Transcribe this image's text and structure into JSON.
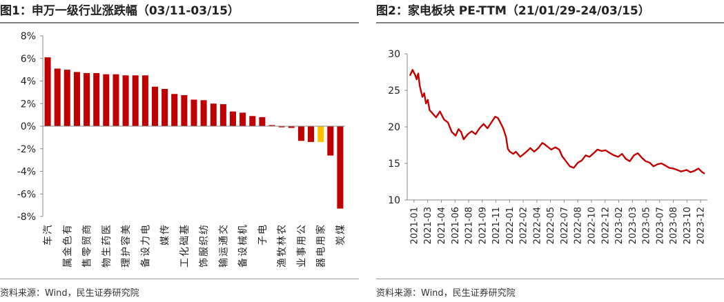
{
  "figures": [
    {
      "title": "图1：申万一级行业涨跌幅（03/11-03/15）",
      "source": "资料来源：Wind，民生证券研究院"
    },
    {
      "title": "图2：家电板块 PE-TTM（21/01/29-24/03/15）",
      "source": "资料来源：Wind，民生证券研究院"
    }
  ],
  "chart_data": [
    {
      "type": "bar",
      "title": "图1：申万一级行业涨跌幅（03/11-03/15）",
      "categories": [
        "汽车",
        "有色金属",
        "商贸零售",
        "医药生物",
        "美容护理",
        "电力设备",
        "传媒",
        "基础化工",
        "纺织服饰",
        "交通运输",
        "机械设备",
        "电子",
        "农林牧渔",
        "公用事业",
        "家用电器",
        "煤炭"
      ],
      "all_bars": [
        6.1,
        5.1,
        5.0,
        4.8,
        4.7,
        4.7,
        4.6,
        4.6,
        4.5,
        4.5,
        4.5,
        3.5,
        3.3,
        2.85,
        2.75,
        2.35,
        2.3,
        2.0,
        1.95,
        1.3,
        1.2,
        0.9,
        0.8,
        0.1,
        -0.1,
        -0.15,
        -1.3,
        -1.4,
        -1.4,
        -2.6,
        -7.3
      ],
      "highlight_index": 28,
      "ylim": [
        -8,
        8
      ],
      "yticks": [
        "-8%",
        "-6%",
        "-4%",
        "-2%",
        "0%",
        "2%",
        "4%",
        "6%",
        "8%"
      ],
      "colors": {
        "bar": "#c00000",
        "highlight": "#ffc000"
      }
    },
    {
      "type": "line",
      "title": "图2：家电板块 PE-TTM（21/01/29-24/03/15）",
      "x_start": "2021-01-29",
      "x_end": "2024-03-15",
      "xticks": [
        "2021-01",
        "2021-03",
        "2021-04",
        "2021-06",
        "2021-08",
        "2021-09",
        "2021-11",
        "2022-01",
        "2022-02",
        "2022-04",
        "2022-05",
        "2022-07",
        "2022-08",
        "2022-10",
        "2022-12",
        "2023-02",
        "2023-03",
        "2023-05",
        "2023-07",
        "2023-08",
        "2023-10",
        "2023-12"
      ],
      "ylim": [
        10,
        30
      ],
      "yticks": [
        "10",
        "15",
        "20",
        "25",
        "30"
      ],
      "series": [
        {
          "points": [
            [
              "2021-01-29",
              27.0
            ],
            [
              "2021-02-08",
              27.8
            ],
            [
              "2021-02-18",
              27.1
            ],
            [
              "2021-02-24",
              26.5
            ],
            [
              "2021-03-02",
              27.3
            ],
            [
              "2021-03-08",
              25.6
            ],
            [
              "2021-03-18",
              24.1
            ],
            [
              "2021-03-25",
              24.6
            ],
            [
              "2021-04-01",
              23.2
            ],
            [
              "2021-04-08",
              23.7
            ],
            [
              "2021-04-15",
              22.3
            ],
            [
              "2021-04-25",
              21.9
            ],
            [
              "2021-05-10",
              21.3
            ],
            [
              "2021-05-25",
              22.1
            ],
            [
              "2021-06-10",
              21.0
            ],
            [
              "2021-06-25",
              20.6
            ],
            [
              "2021-07-10",
              19.3
            ],
            [
              "2021-07-25",
              18.8
            ],
            [
              "2021-08-05",
              19.7
            ],
            [
              "2021-08-15",
              19.3
            ],
            [
              "2021-08-25",
              18.3
            ],
            [
              "2021-09-10",
              19.0
            ],
            [
              "2021-09-25",
              19.4
            ],
            [
              "2021-10-10",
              19.0
            ],
            [
              "2021-10-25",
              19.8
            ],
            [
              "2021-11-10",
              20.4
            ],
            [
              "2021-11-25",
              19.8
            ],
            [
              "2021-12-10",
              20.6
            ],
            [
              "2021-12-25",
              21.4
            ],
            [
              "2022-01-05",
              21.2
            ],
            [
              "2022-01-15",
              20.5
            ],
            [
              "2022-01-25",
              19.8
            ],
            [
              "2022-02-05",
              18.6
            ],
            [
              "2022-02-12",
              17.0
            ],
            [
              "2022-02-20",
              16.6
            ],
            [
              "2022-03-05",
              16.3
            ],
            [
              "2022-03-15",
              16.6
            ],
            [
              "2022-04-01",
              15.9
            ],
            [
              "2022-04-15",
              16.3
            ],
            [
              "2022-04-28",
              16.7
            ],
            [
              "2022-05-10",
              17.1
            ],
            [
              "2022-05-25",
              16.6
            ],
            [
              "2022-06-10",
              17.1
            ],
            [
              "2022-06-25",
              17.8
            ],
            [
              "2022-07-05",
              17.6
            ],
            [
              "2022-07-15",
              17.3
            ],
            [
              "2022-07-30",
              16.9
            ],
            [
              "2022-08-15",
              17.2
            ],
            [
              "2022-08-30",
              16.9
            ],
            [
              "2022-09-10",
              16.0
            ],
            [
              "2022-09-25",
              15.3
            ],
            [
              "2022-10-10",
              14.6
            ],
            [
              "2022-10-25",
              14.4
            ],
            [
              "2022-11-10",
              15.1
            ],
            [
              "2022-11-25",
              15.4
            ],
            [
              "2022-12-10",
              16.1
            ],
            [
              "2022-12-25",
              15.9
            ],
            [
              "2023-01-10",
              16.4
            ],
            [
              "2023-01-25",
              16.9
            ],
            [
              "2023-02-10",
              16.7
            ],
            [
              "2023-02-25",
              16.8
            ],
            [
              "2023-03-15",
              16.4
            ],
            [
              "2023-03-30",
              16.1
            ],
            [
              "2023-04-15",
              15.9
            ],
            [
              "2023-04-30",
              16.3
            ],
            [
              "2023-05-15",
              15.6
            ],
            [
              "2023-05-30",
              15.3
            ],
            [
              "2023-06-15",
              16.1
            ],
            [
              "2023-06-30",
              16.4
            ],
            [
              "2023-07-15",
              15.8
            ],
            [
              "2023-07-30",
              15.3
            ],
            [
              "2023-08-15",
              15.1
            ],
            [
              "2023-08-30",
              14.6
            ],
            [
              "2023-09-15",
              14.9
            ],
            [
              "2023-09-30",
              15.0
            ],
            [
              "2023-10-15",
              14.7
            ],
            [
              "2023-10-30",
              14.4
            ],
            [
              "2023-11-15",
              14.3
            ],
            [
              "2023-11-30",
              14.1
            ],
            [
              "2023-12-15",
              13.9
            ],
            [
              "2024-01-05",
              14.1
            ],
            [
              "2024-01-20",
              13.8
            ],
            [
              "2024-02-05",
              14.0
            ],
            [
              "2024-02-20",
              14.3
            ],
            [
              "2024-03-05",
              13.8
            ],
            [
              "2024-03-15",
              13.6
            ]
          ]
        }
      ],
      "colors": {
        "line": "#c00000"
      }
    }
  ]
}
